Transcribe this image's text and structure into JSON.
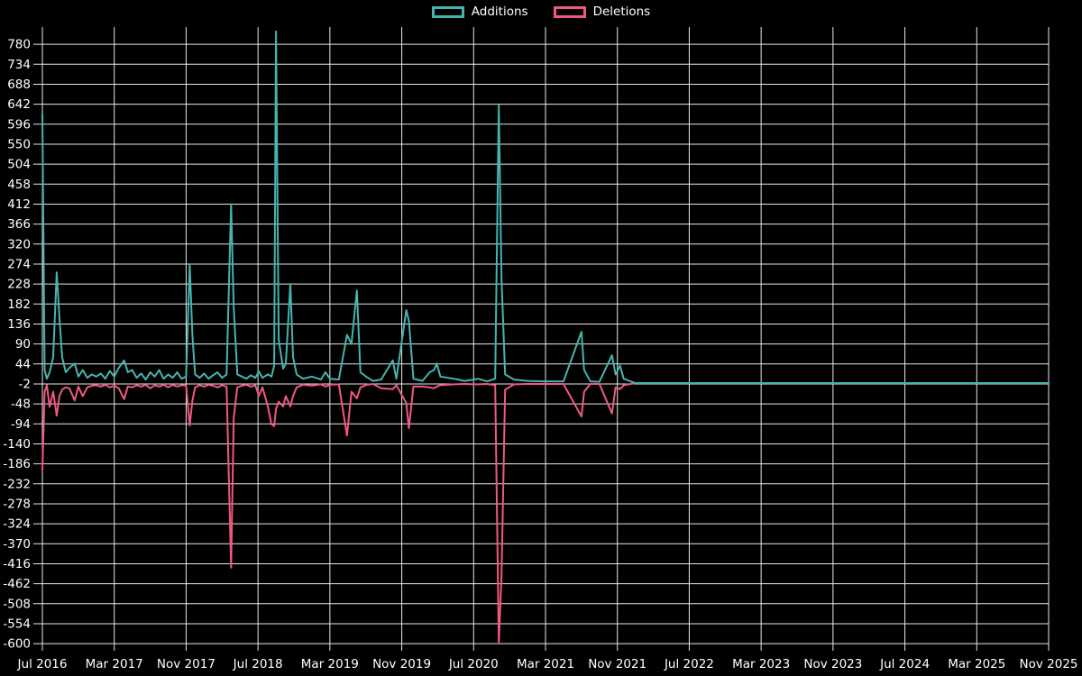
{
  "legend": {
    "additions_label": "Additions",
    "deletions_label": "Deletions"
  },
  "colors": {
    "background": "#000000",
    "gridline": "#e8e8e8",
    "axis_text": "#ffffff",
    "additions": "#46b4af",
    "deletions": "#f0597f"
  },
  "chart_data": {
    "type": "line",
    "title": "",
    "xlabel": "",
    "ylabel": "",
    "legend_position": "top-center",
    "grid": true,
    "ylim": [
      -600,
      817
    ],
    "x_unit": "months since Jul 2016",
    "y_ticks": [
      780,
      734,
      688,
      642,
      596,
      550,
      504,
      458,
      412,
      366,
      320,
      274,
      228,
      182,
      136,
      90,
      44,
      -2,
      -48,
      -94,
      -140,
      -186,
      -232,
      -278,
      -324,
      -370,
      -416,
      -462,
      -508,
      -554,
      -600
    ],
    "x_ticks": [
      {
        "label": "Jul 2016",
        "month": 0
      },
      {
        "label": "Mar 2017",
        "month": 8
      },
      {
        "label": "Nov 2017",
        "month": 16
      },
      {
        "label": "Jul 2018",
        "month": 24
      },
      {
        "label": "Mar 2019",
        "month": 32
      },
      {
        "label": "Nov 2019",
        "month": 40
      },
      {
        "label": "Jul 2020",
        "month": 48
      },
      {
        "label": "Mar 2021",
        "month": 56
      },
      {
        "label": "Nov 2021",
        "month": 64
      },
      {
        "label": "Jul 2022",
        "month": 72
      },
      {
        "label": "Mar 2023",
        "month": 80
      },
      {
        "label": "Nov 2023",
        "month": 88
      },
      {
        "label": "Jul 2024",
        "month": 96
      },
      {
        "label": "Mar 2025",
        "month": 104
      },
      {
        "label": "Nov 2025",
        "month": 112
      }
    ],
    "series": [
      {
        "name": "Additions",
        "color": "#46b4af"
      },
      {
        "name": "Deletions",
        "color": "#f0597f"
      }
    ],
    "points_format": [
      "month",
      "additions",
      "deletions"
    ],
    "points": [
      [
        0,
        620,
        -200
      ],
      [
        0.25,
        30,
        -20
      ],
      [
        0.5,
        10,
        -5
      ],
      [
        0.8,
        25,
        -55
      ],
      [
        1.2,
        60,
        -20
      ],
      [
        1.6,
        255,
        -75
      ],
      [
        1.9,
        150,
        -30
      ],
      [
        2.2,
        60,
        -15
      ],
      [
        2.6,
        25,
        -10
      ],
      [
        3.0,
        35,
        -12
      ],
      [
        3.6,
        45,
        -40
      ],
      [
        4.0,
        15,
        -8
      ],
      [
        4.5,
        30,
        -30
      ],
      [
        5.0,
        12,
        -10
      ],
      [
        5.5,
        20,
        -6
      ],
      [
        6.0,
        15,
        -5
      ],
      [
        6.5,
        22,
        -8
      ],
      [
        7.0,
        10,
        -4
      ],
      [
        7.5,
        28,
        -10
      ],
      [
        8.0,
        15,
        -6
      ],
      [
        8.5,
        35,
        -12
      ],
      [
        9.1,
        52,
        -37
      ],
      [
        9.5,
        25,
        -8
      ],
      [
        10.0,
        30,
        -10
      ],
      [
        10.5,
        12,
        -5
      ],
      [
        11.0,
        22,
        -8
      ],
      [
        11.5,
        8,
        -4
      ],
      [
        12.0,
        25,
        -12
      ],
      [
        12.5,
        15,
        -5
      ],
      [
        13.0,
        30,
        -8
      ],
      [
        13.5,
        10,
        -4
      ],
      [
        14.0,
        20,
        -10
      ],
      [
        14.5,
        12,
        -4
      ],
      [
        15.0,
        25,
        -8
      ],
      [
        15.5,
        10,
        -5
      ],
      [
        16.0,
        15,
        -6
      ],
      [
        16.4,
        272,
        -98
      ],
      [
        16.7,
        109,
        -40
      ],
      [
        17.0,
        20,
        -10
      ],
      [
        17.5,
        12,
        -5
      ],
      [
        18.0,
        22,
        -8
      ],
      [
        18.5,
        10,
        -4
      ],
      [
        19.0,
        18,
        -6
      ],
      [
        19.5,
        25,
        -10
      ],
      [
        20.0,
        12,
        -5
      ],
      [
        20.5,
        20,
        -8
      ],
      [
        21.0,
        412,
        -425
      ],
      [
        21.3,
        174,
        -80
      ],
      [
        21.7,
        20,
        -10
      ],
      [
        22.2,
        15,
        -6
      ],
      [
        22.7,
        10,
        -4
      ],
      [
        23.2,
        18,
        -8
      ],
      [
        23.7,
        12,
        -5
      ],
      [
        24.1,
        27,
        -29
      ],
      [
        24.5,
        12,
        -10
      ],
      [
        25.1,
        20,
        -54
      ],
      [
        25.5,
        15,
        -95
      ],
      [
        25.8,
        40,
        -99
      ],
      [
        26.0,
        810,
        -60
      ],
      [
        26.3,
        100,
        -43
      ],
      [
        26.8,
        33,
        -54
      ],
      [
        27.1,
        45,
        -30
      ],
      [
        27.6,
        228,
        -54
      ],
      [
        27.9,
        60,
        -30
      ],
      [
        28.3,
        20,
        -10
      ],
      [
        29.0,
        10,
        -4
      ],
      [
        30.0,
        15,
        -6
      ],
      [
        31.0,
        8,
        -3
      ],
      [
        31.5,
        25,
        -8
      ],
      [
        32.0,
        10,
        -4
      ],
      [
        33.0,
        8,
        -3
      ],
      [
        33.9,
        111,
        -121
      ],
      [
        34.4,
        90,
        -20
      ],
      [
        35.0,
        213,
        -35
      ],
      [
        35.4,
        25,
        -10
      ],
      [
        36.1,
        14,
        -4
      ],
      [
        36.8,
        5,
        -2
      ],
      [
        37.7,
        8,
        -12
      ],
      [
        39.0,
        52,
        -14
      ],
      [
        39.4,
        10,
        -5
      ],
      [
        40.5,
        168,
        -46
      ],
      [
        40.8,
        143,
        -104
      ],
      [
        41.3,
        10,
        -8
      ],
      [
        42.3,
        5,
        -8
      ],
      [
        43.1,
        25,
        -10
      ],
      [
        43.6,
        30,
        -12
      ],
      [
        43.9,
        45,
        -8
      ],
      [
        44.3,
        15,
        -5
      ],
      [
        45.8,
        10,
        -3
      ],
      [
        47.0,
        5,
        -2
      ],
      [
        48.0,
        8,
        -3
      ],
      [
        48.5,
        10,
        -3
      ],
      [
        49.5,
        4,
        -2
      ],
      [
        50.4,
        10,
        -5
      ],
      [
        50.8,
        640,
        -600
      ],
      [
        51.1,
        240,
        -446
      ],
      [
        51.5,
        20,
        -15
      ],
      [
        52.5,
        8,
        -3
      ],
      [
        54.0,
        5,
        -2
      ],
      [
        56.0,
        4,
        -2
      ],
      [
        58.0,
        4,
        -2
      ],
      [
        60.0,
        118,
        -77
      ],
      [
        60.3,
        30,
        -20
      ],
      [
        61.0,
        4,
        -2
      ],
      [
        62.0,
        3,
        -2
      ],
      [
        63.4,
        64,
        -70
      ],
      [
        63.8,
        20,
        -10
      ],
      [
        64.3,
        40,
        -14
      ],
      [
        64.7,
        10,
        -5
      ],
      [
        66,
        0,
        0
      ],
      [
        72,
        0,
        0
      ],
      [
        80,
        0,
        0
      ],
      [
        88,
        0,
        0
      ],
      [
        96,
        0,
        0
      ],
      [
        104,
        0,
        0
      ],
      [
        112,
        0,
        0
      ]
    ]
  }
}
